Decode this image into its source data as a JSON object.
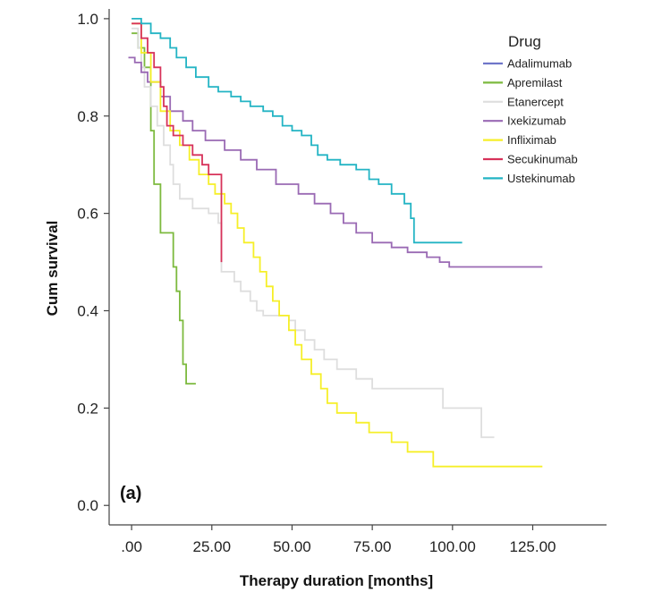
{
  "chart_data": {
    "type": "line",
    "subtype": "kaplan-meier step",
    "panel_label": "(a)",
    "xlabel": "Therapy duration [months]",
    "ylabel": "Cum survival",
    "xlim": [
      -7,
      148
    ],
    "ylim": [
      -0.04,
      1.02
    ],
    "x_ticks": [
      {
        "value": 0,
        "label": ".00"
      },
      {
        "value": 25,
        "label": "25.00"
      },
      {
        "value": 50,
        "label": "50.00"
      },
      {
        "value": 75,
        "label": "75.00"
      },
      {
        "value": 100,
        "label": "100.00"
      },
      {
        "value": 125,
        "label": "125.00"
      }
    ],
    "y_ticks": [
      {
        "value": 0.0,
        "label": "0.0"
      },
      {
        "value": 0.2,
        "label": "0.2"
      },
      {
        "value": 0.4,
        "label": "0.4"
      },
      {
        "value": 0.6,
        "label": "0.6"
      },
      {
        "value": 0.8,
        "label": "0.8"
      },
      {
        "value": 1.0,
        "label": "1.0"
      }
    ],
    "grid": false,
    "legend": {
      "title": "Drug",
      "position": "top-right"
    },
    "series": [
      {
        "name": "Adalimumab",
        "color": "#6f76c9",
        "points": []
      },
      {
        "name": "Apremilast",
        "color": "#7dba3f",
        "points": [
          [
            0,
            0.97
          ],
          [
            2,
            0.94
          ],
          [
            4,
            0.9
          ],
          [
            6,
            0.77
          ],
          [
            7,
            0.66
          ],
          [
            9,
            0.56
          ],
          [
            13,
            0.49
          ],
          [
            14,
            0.44
          ],
          [
            15,
            0.38
          ],
          [
            16,
            0.29
          ],
          [
            17,
            0.25
          ],
          [
            20,
            0.25
          ]
        ]
      },
      {
        "name": "Etanercept",
        "color": "#dedede",
        "points": [
          [
            0,
            0.98
          ],
          [
            2,
            0.94
          ],
          [
            3,
            0.9
          ],
          [
            4,
            0.86
          ],
          [
            6,
            0.82
          ],
          [
            8,
            0.78
          ],
          [
            10,
            0.74
          ],
          [
            12,
            0.7
          ],
          [
            13,
            0.66
          ],
          [
            15,
            0.63
          ],
          [
            19,
            0.61
          ],
          [
            24,
            0.6
          ],
          [
            27,
            0.58
          ],
          [
            28,
            0.48
          ],
          [
            32,
            0.46
          ],
          [
            34,
            0.44
          ],
          [
            37,
            0.42
          ],
          [
            39,
            0.4
          ],
          [
            41,
            0.39
          ],
          [
            49,
            0.38
          ],
          [
            51,
            0.36
          ],
          [
            54,
            0.34
          ],
          [
            57,
            0.32
          ],
          [
            60,
            0.3
          ],
          [
            64,
            0.28
          ],
          [
            70,
            0.26
          ],
          [
            75,
            0.24
          ],
          [
            97,
            0.2
          ],
          [
            109,
            0.14
          ],
          [
            113,
            0.14
          ]
        ]
      },
      {
        "name": "Ixekizumab",
        "color": "#9a6ab4",
        "points": [
          [
            -1,
            0.92
          ],
          [
            1,
            0.91
          ],
          [
            3,
            0.89
          ],
          [
            5,
            0.87
          ],
          [
            9,
            0.84
          ],
          [
            12,
            0.81
          ],
          [
            16,
            0.79
          ],
          [
            19,
            0.77
          ],
          [
            23,
            0.75
          ],
          [
            29,
            0.73
          ],
          [
            34,
            0.71
          ],
          [
            39,
            0.69
          ],
          [
            45,
            0.66
          ],
          [
            52,
            0.64
          ],
          [
            57,
            0.62
          ],
          [
            62,
            0.6
          ],
          [
            66,
            0.58
          ],
          [
            70,
            0.56
          ],
          [
            75,
            0.54
          ],
          [
            81,
            0.53
          ],
          [
            86,
            0.52
          ],
          [
            92,
            0.51
          ],
          [
            96,
            0.5
          ],
          [
            99,
            0.49
          ],
          [
            128,
            0.49
          ]
        ]
      },
      {
        "name": "Infliximab",
        "color": "#f6ef28",
        "points": [
          [
            0,
            0.99
          ],
          [
            3,
            0.93
          ],
          [
            6,
            0.87
          ],
          [
            9,
            0.81
          ],
          [
            12,
            0.77
          ],
          [
            15,
            0.74
          ],
          [
            18,
            0.71
          ],
          [
            21,
            0.68
          ],
          [
            24,
            0.66
          ],
          [
            26,
            0.64
          ],
          [
            29,
            0.62
          ],
          [
            31,
            0.6
          ],
          [
            33,
            0.57
          ],
          [
            35,
            0.54
          ],
          [
            38,
            0.51
          ],
          [
            40,
            0.48
          ],
          [
            42,
            0.45
          ],
          [
            44,
            0.42
          ],
          [
            46,
            0.39
          ],
          [
            49,
            0.36
          ],
          [
            51,
            0.33
          ],
          [
            53,
            0.3
          ],
          [
            56,
            0.27
          ],
          [
            59,
            0.24
          ],
          [
            61,
            0.21
          ],
          [
            64,
            0.19
          ],
          [
            70,
            0.17
          ],
          [
            74,
            0.15
          ],
          [
            81,
            0.13
          ],
          [
            86,
            0.11
          ],
          [
            94,
            0.08
          ],
          [
            128,
            0.08
          ]
        ]
      },
      {
        "name": "Secukinumab",
        "color": "#d7325a",
        "points": [
          [
            0,
            0.99
          ],
          [
            3,
            0.96
          ],
          [
            5,
            0.93
          ],
          [
            7,
            0.9
          ],
          [
            9,
            0.86
          ],
          [
            10,
            0.82
          ],
          [
            11,
            0.78
          ],
          [
            13,
            0.76
          ],
          [
            16,
            0.74
          ],
          [
            19,
            0.72
          ],
          [
            22,
            0.7
          ],
          [
            24,
            0.68
          ],
          [
            28,
            0.5
          ]
        ]
      },
      {
        "name": "Ustekinumab",
        "color": "#23b4c4",
        "points": [
          [
            0,
            1.0
          ],
          [
            3,
            0.99
          ],
          [
            6,
            0.97
          ],
          [
            9,
            0.96
          ],
          [
            12,
            0.94
          ],
          [
            14,
            0.92
          ],
          [
            17,
            0.9
          ],
          [
            20,
            0.88
          ],
          [
            24,
            0.86
          ],
          [
            27,
            0.85
          ],
          [
            31,
            0.84
          ],
          [
            34,
            0.83
          ],
          [
            37,
            0.82
          ],
          [
            41,
            0.81
          ],
          [
            44,
            0.8
          ],
          [
            47,
            0.78
          ],
          [
            50,
            0.77
          ],
          [
            53,
            0.76
          ],
          [
            56,
            0.74
          ],
          [
            58,
            0.72
          ],
          [
            61,
            0.71
          ],
          [
            65,
            0.7
          ],
          [
            70,
            0.69
          ],
          [
            74,
            0.67
          ],
          [
            77,
            0.66
          ],
          [
            81,
            0.64
          ],
          [
            85,
            0.62
          ],
          [
            87,
            0.59
          ],
          [
            88,
            0.54
          ],
          [
            103,
            0.54
          ]
        ]
      }
    ]
  }
}
